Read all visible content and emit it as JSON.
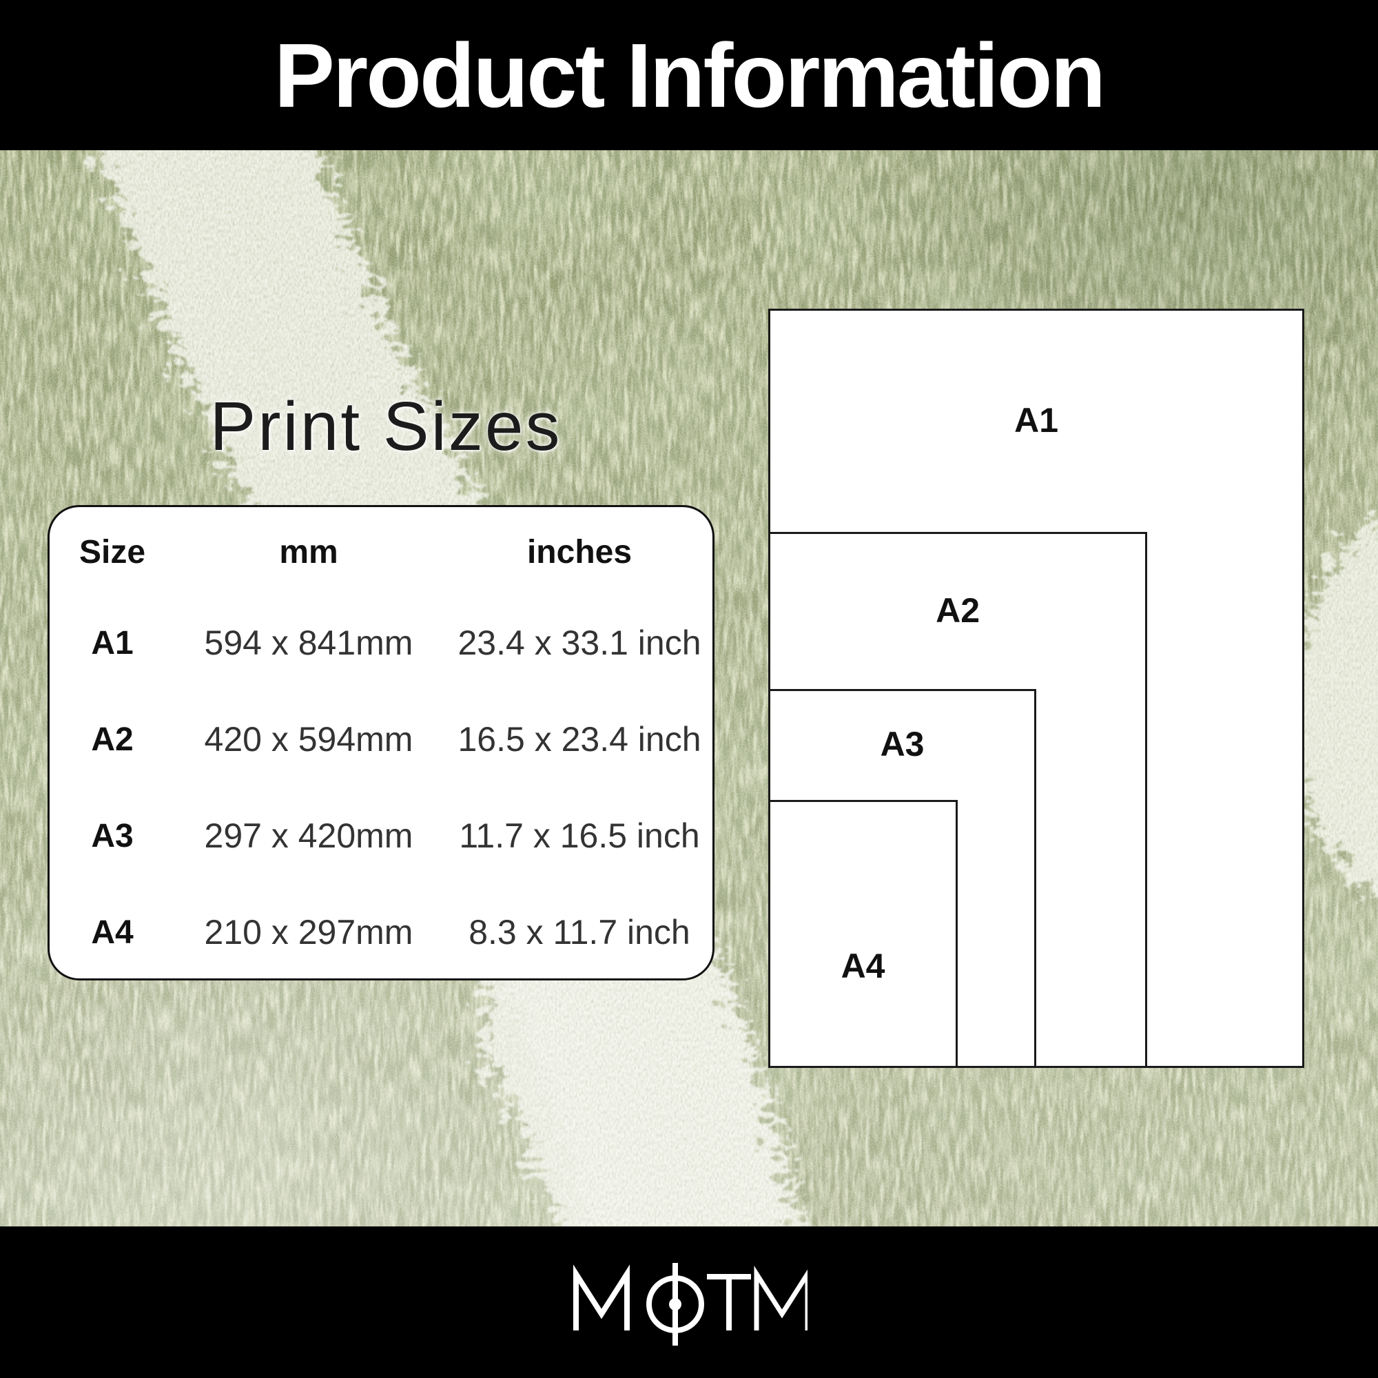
{
  "header": {
    "title": "Product Information"
  },
  "section": {
    "title": "Print Sizes"
  },
  "size_table": {
    "columns": [
      "Size",
      "mm",
      "inches"
    ],
    "rows": [
      {
        "size": "A1",
        "mm": "594 x 841mm",
        "inches": "23.4 x 33.1 inch"
      },
      {
        "size": "A2",
        "mm": "420 x 594mm",
        "inches": "16.5 x 23.4 inch"
      },
      {
        "size": "A3",
        "mm": "297 x 420mm",
        "inches": "11.7 x 16.5 inch"
      },
      {
        "size": "A4",
        "mm": "210 x 297mm",
        "inches": "8.3 x 11.7 inch"
      }
    ]
  },
  "diagram": {
    "papers": [
      {
        "label": "A1",
        "width_mm": 594,
        "height_mm": 841
      },
      {
        "label": "A2",
        "width_mm": 420,
        "height_mm": 594
      },
      {
        "label": "A3",
        "width_mm": 297,
        "height_mm": 420
      },
      {
        "label": "A4",
        "width_mm": 210,
        "height_mm": 297
      }
    ]
  },
  "footer": {
    "brand": "MOTM",
    "logo_icon": "football-centre-mark-o-icon"
  },
  "colors": {
    "header_bg": "#000000",
    "header_text": "#ffffff",
    "grass_base": "#75804a",
    "grass_dark": "#3f4c24",
    "grass_light": "#c9cf96",
    "pitch_line_white": "#f0f1e6",
    "card_bg": "#ffffff",
    "card_border": "#111111",
    "paper_fill": "#ffffff",
    "paper_border": "#1a1a1a",
    "text_dark": "#1d1d1d"
  }
}
